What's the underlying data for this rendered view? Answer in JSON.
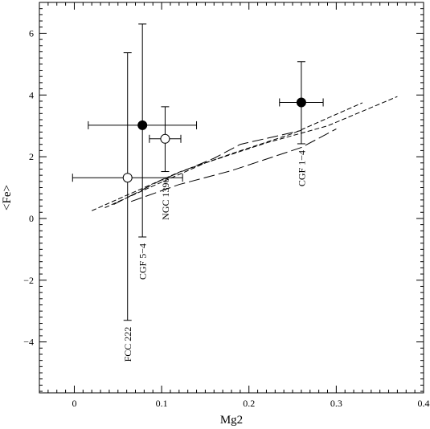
{
  "chart_data": {
    "type": "scatter",
    "title": "",
    "xlabel": "Mg2",
    "ylabel": "<Fe>",
    "xlim": [
      -0.04,
      0.4
    ],
    "ylim": [
      -5.65,
      7.0
    ],
    "x_ticks": [
      {
        "value": 0,
        "label": "0"
      },
      {
        "value": 0.1,
        "label": "0.1"
      },
      {
        "value": 0.2,
        "label": "0.2"
      },
      {
        "value": 0.3,
        "label": "0.3"
      },
      {
        "value": 0.4,
        "label": "0.4"
      }
    ],
    "y_ticks": [
      {
        "value": -4,
        "label": "−4"
      },
      {
        "value": -2,
        "label": "−2"
      },
      {
        "value": 0,
        "label": "0"
      },
      {
        "value": 2,
        "label": "2"
      },
      {
        "value": 4,
        "label": "4"
      },
      {
        "value": 6,
        "label": "6"
      }
    ],
    "grid": false,
    "points": [
      {
        "label": "FCC 222",
        "x": 0.061,
        "y": 1.32,
        "xerr": 0.063,
        "yerr_low": 4.62,
        "yerr_high": 4.05,
        "marker": "open-circle"
      },
      {
        "label": "CGF 5−4",
        "x": 0.078,
        "y": 3.02,
        "xerr": 0.062,
        "yerr_low": 3.62,
        "yerr_high": 3.28,
        "marker": "filled-circle"
      },
      {
        "label": "NGC 1396",
        "x": 0.104,
        "y": 2.58,
        "xerr": 0.018,
        "yerr_low": 1.06,
        "yerr_high": 1.04,
        "marker": "open-circle"
      },
      {
        "label": "CGF 1−4",
        "x": 0.26,
        "y": 3.76,
        "xerr": 0.025,
        "yerr_low": 1.34,
        "yerr_high": 1.32,
        "marker": "filled-circle"
      }
    ],
    "model_lines": [
      {
        "dash": "short",
        "points": [
          [
            0.02,
            0.25
          ],
          [
            0.06,
            0.75
          ],
          [
            0.12,
            1.5
          ],
          [
            0.18,
            2.1
          ],
          [
            0.25,
            2.75
          ],
          [
            0.33,
            3.75
          ]
        ]
      },
      {
        "dash": "short",
        "points": [
          [
            0.035,
            0.35
          ],
          [
            0.09,
            1.05
          ],
          [
            0.15,
            1.8
          ],
          [
            0.22,
            2.45
          ],
          [
            0.29,
            3.0
          ],
          [
            0.37,
            3.95
          ]
        ]
      },
      {
        "dash": "long",
        "points": [
          [
            0.045,
            0.45
          ],
          [
            0.1,
            1.25
          ],
          [
            0.16,
            1.95
          ],
          [
            0.19,
            2.4
          ],
          [
            0.26,
            2.85
          ]
        ]
      },
      {
        "dash": "long",
        "points": [
          [
            0.065,
            0.55
          ],
          [
            0.12,
            1.1
          ],
          [
            0.18,
            1.55
          ],
          [
            0.26,
            2.3
          ],
          [
            0.3,
            2.9
          ]
        ]
      }
    ]
  }
}
